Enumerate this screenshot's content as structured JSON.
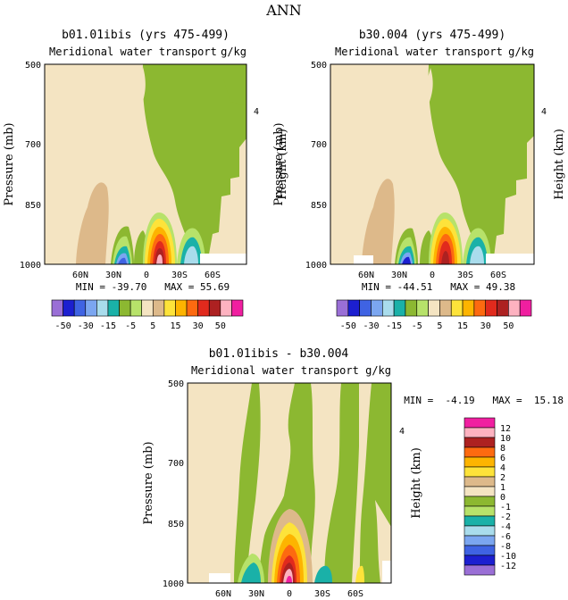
{
  "page_title": "ANN",
  "colors": {
    "cream": "#f4e4c2",
    "green": "#8cb831",
    "lightgreen": "#b7e26a",
    "tan": "#ddb98a"
  },
  "chart_data": [
    {
      "type": "contour",
      "title": "b01.01ibis (yrs 475-499)",
      "subtitle": "Meridional water transport",
      "units": "g/kg",
      "ylabel": "Pressure (mb)",
      "ylabel_right": "Height (km)",
      "yticks": [
        "500",
        "700",
        "850",
        "1000"
      ],
      "right_ticks": [
        "4"
      ],
      "xticks": [
        "60N",
        "30N",
        "0",
        "30S",
        "60S"
      ],
      "stats": "MIN = -39.70   MAX = 55.69"
    },
    {
      "type": "contour",
      "title": "b30.004 (yrs 475-499)",
      "subtitle": "Meridional water transport",
      "units": "g/kg",
      "ylabel": "Pressure (mb)",
      "ylabel_right": "Height (km)",
      "yticks": [
        "500",
        "700",
        "850",
        "1000"
      ],
      "right_ticks": [
        "4"
      ],
      "xticks": [
        "60N",
        "30N",
        "0",
        "30S",
        "60S"
      ],
      "stats": "MIN = -44.51   MAX = 49.38"
    },
    {
      "type": "contour",
      "title": "b01.01ibis - b30.004",
      "subtitle": "Meridional water transport",
      "units": "g/kg",
      "ylabel": "Pressure (mb)",
      "ylabel_right": "Height (km)",
      "yticks": [
        "500",
        "700",
        "850",
        "1000"
      ],
      "right_ticks": [
        "4"
      ],
      "xticks": [
        "60N",
        "30N",
        "0",
        "30S",
        "60S"
      ],
      "stats": "MIN =  -4.19   MAX =  15.18"
    }
  ],
  "top_colorbar": {
    "colors": [
      "#9a6fd6",
      "#1c1fd0",
      "#3f63e3",
      "#7ba6f0",
      "#a9dcec",
      "#1ab1a8",
      "#8cb831",
      "#b7e26a",
      "#f4e4c2",
      "#ddb98a",
      "#fde33a",
      "#fdb400",
      "#fd6a10",
      "#e12a1d",
      "#ad2121",
      "#fdb2c0",
      "#f01fa0"
    ],
    "labels": [
      "-50",
      "-30",
      "-15",
      "-5",
      "5",
      "15",
      "30",
      "50"
    ]
  },
  "diff_colorbar": {
    "colors": [
      "#f01fa0",
      "#fdb2c0",
      "#ad2121",
      "#fd6a10",
      "#fdb400",
      "#fde33a",
      "#ddb98a",
      "#f4e4c2",
      "#8cb831",
      "#b7e26a",
      "#1ab1a8",
      "#a9dcec",
      "#7ba6f0",
      "#3f63e3",
      "#1c1fd0",
      "#9a6fd6"
    ],
    "labels": [
      "12",
      "10",
      "8",
      "6",
      "4",
      "2",
      "1",
      "0",
      "-1",
      "-2",
      "-4",
      "-6",
      "-8",
      "-10",
      "-12"
    ]
  }
}
